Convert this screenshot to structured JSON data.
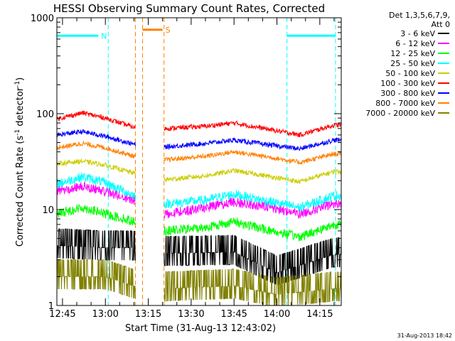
{
  "chart_data": {
    "type": "line",
    "title": "HESSI Observing Summary Count Rates, Corrected",
    "xlabel": "Start Time (31-Aug-13 12:43:02)",
    "ylabel": "Corrected Count Rate (s⁻¹ detector⁻¹)",
    "ylabel_main": "Corrected Count Rate (s",
    "ylabel_sup1": "-1",
    "ylabel_mid": " detector",
    "ylabel_sup2": "-1",
    "ylabel_end": ")",
    "yscale": "log",
    "ylim": [
      1,
      1000
    ],
    "xlim": [
      "12:43:02",
      "14:22:30"
    ],
    "y_ticks": [
      "1",
      "10",
      "100",
      "1000"
    ],
    "x_ticks": [
      "12:45",
      "13:00",
      "13:15",
      "13:30",
      "13:45",
      "14:00",
      "14:15"
    ],
    "legend_header": [
      "Det 1,3,5,6,7,9,",
      "Att 0"
    ],
    "legend_position": "right",
    "timestamp": "31-Aug-2013 18:42",
    "gaps": [
      [
        "13:10:30",
        "13:20:30"
      ]
    ],
    "flags": [
      {
        "label": "N",
        "color": "#00ffff",
        "level": 650,
        "spans": [
          [
            "12:43:02",
            "12:57:30"
          ],
          [
            "14:03:30",
            "14:20:30"
          ]
        ],
        "boundaries": [
          "13:01:00",
          "14:03:30",
          "14:20:30"
        ]
      },
      {
        "label": "S",
        "color": "#ff8000",
        "level": 750,
        "spans": [
          [
            "13:13:00",
            "13:20:00"
          ]
        ],
        "boundaries": [
          "13:10:30",
          "13:13:00",
          "13:20:30"
        ]
      }
    ],
    "series": [
      {
        "name": "3 - 6 keV",
        "color": "#000000",
        "points": [
          [
            "12:45",
            4.2
          ],
          [
            "13:00",
            4.0
          ],
          [
            "13:10",
            4.0
          ],
          [
            "13:21",
            3.5
          ],
          [
            "13:45",
            3.6
          ],
          [
            "14:00",
            2.2
          ],
          [
            "14:20",
            3.4
          ]
        ]
      },
      {
        "name": "6 - 12 keV",
        "color": "#ff00ff",
        "points": [
          [
            "12:43",
            15.5
          ],
          [
            "12:52",
            17.5
          ],
          [
            "13:00",
            15.5
          ],
          [
            "13:10",
            12.5
          ],
          [
            "13:21",
            9.0
          ],
          [
            "13:35",
            10.5
          ],
          [
            "13:45",
            12.0
          ],
          [
            "13:58",
            10.5
          ],
          [
            "14:08",
            9.0
          ],
          [
            "14:20",
            11.5
          ]
        ]
      },
      {
        "name": "12 - 25 keV",
        "color": "#00ff00",
        "points": [
          [
            "12:43",
            9.0
          ],
          [
            "12:52",
            10.5
          ],
          [
            "13:00",
            9.0
          ],
          [
            "13:10",
            7.5
          ],
          [
            "13:21",
            6.0
          ],
          [
            "13:35",
            6.5
          ],
          [
            "13:45",
            7.5
          ],
          [
            "13:58",
            6.0
          ],
          [
            "14:08",
            5.2
          ],
          [
            "14:20",
            7.0
          ]
        ]
      },
      {
        "name": "25 - 50 keV",
        "color": "#00ffff",
        "points": [
          [
            "12:43",
            18.5
          ],
          [
            "12:52",
            22.0
          ],
          [
            "13:00",
            19.0
          ],
          [
            "13:10",
            14.0
          ],
          [
            "13:21",
            11.5
          ],
          [
            "13:35",
            12.5
          ],
          [
            "13:45",
            14.5
          ],
          [
            "13:58",
            12.0
          ],
          [
            "14:08",
            10.5
          ],
          [
            "14:20",
            14.0
          ]
        ]
      },
      {
        "name": "50 - 100 keV",
        "color": "#cccc00",
        "points": [
          [
            "12:43",
            30.0
          ],
          [
            "12:52",
            32.0
          ],
          [
            "13:00",
            29.0
          ],
          [
            "13:10",
            24.0
          ],
          [
            "13:21",
            20.5
          ],
          [
            "13:35",
            22.5
          ],
          [
            "13:45",
            25.5
          ],
          [
            "13:58",
            22.0
          ],
          [
            "14:08",
            19.5
          ],
          [
            "14:20",
            25.0
          ]
        ]
      },
      {
        "name": "100 - 300 keV",
        "color": "#ff0000",
        "points": [
          [
            "12:43",
            88
          ],
          [
            "12:52",
            102
          ],
          [
            "13:00",
            90
          ],
          [
            "13:10",
            72
          ],
          [
            "13:21",
            70
          ],
          [
            "13:35",
            74
          ],
          [
            "13:45",
            80
          ],
          [
            "13:58",
            68
          ],
          [
            "14:08",
            60
          ],
          [
            "14:20",
            76
          ]
        ]
      },
      {
        "name": "300 - 800 keV",
        "color": "#0000ff",
        "points": [
          [
            "12:43",
            60
          ],
          [
            "12:52",
            65
          ],
          [
            "13:00",
            58
          ],
          [
            "13:10",
            48
          ],
          [
            "13:21",
            45
          ],
          [
            "13:35",
            49
          ],
          [
            "13:45",
            53
          ],
          [
            "13:58",
            47
          ],
          [
            "14:08",
            43
          ],
          [
            "14:20",
            53
          ]
        ]
      },
      {
        "name": "800 - 7000 keV",
        "color": "#ff8000",
        "points": [
          [
            "12:43",
            44
          ],
          [
            "12:52",
            49
          ],
          [
            "13:00",
            44
          ],
          [
            "13:10",
            36
          ],
          [
            "13:21",
            33
          ],
          [
            "13:35",
            36
          ],
          [
            "13:45",
            40
          ],
          [
            "13:58",
            35
          ],
          [
            "14:08",
            31
          ],
          [
            "14:20",
            38
          ]
        ]
      },
      {
        "name": "7000 - 20000 keV",
        "color": "#808000",
        "points": [
          [
            "12:45",
            2.0
          ],
          [
            "13:00",
            2.0
          ],
          [
            "13:10",
            1.6
          ],
          [
            "13:21",
            1.5
          ],
          [
            "13:45",
            1.6
          ],
          [
            "14:00",
            1.3
          ],
          [
            "14:20",
            1.5
          ]
        ]
      }
    ]
  }
}
